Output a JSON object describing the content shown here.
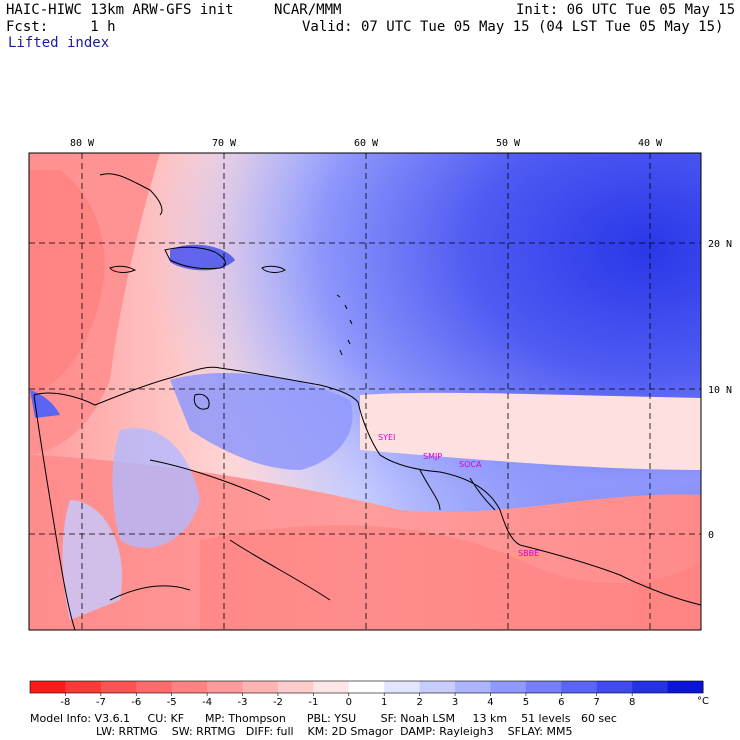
{
  "header": {
    "model": "HAIC-HIWC 13km ARW-GFS init",
    "org": "NCAR/MMM",
    "init": "Init: 06 UTC Tue 05 May 15",
    "fcst": "Fcst:     1 h",
    "valid": "Valid: 07 UTC Tue 05 May 15 (04 LST Tue 05 May 15)",
    "field": "Lifted index"
  },
  "map": {
    "lon_labels": [
      "80 W",
      "70 W",
      "60 W",
      "50 W",
      "40 W"
    ],
    "lat_labels": [
      "20 N",
      "10 N",
      "0"
    ],
    "stations": [
      "SYEI",
      "SMJP",
      "SOCA",
      "SBBE"
    ]
  },
  "colorbar": {
    "ticks": [
      "-8",
      "-7",
      "-6",
      "-5",
      "-4",
      "-3",
      "-2",
      "-1",
      "0",
      "1",
      "2",
      "3",
      "4",
      "5",
      "6",
      "7",
      "8"
    ],
    "unit": "°C",
    "colors": [
      "#ff1a1a",
      "#ff3838",
      "#ff5252",
      "#ff6a6a",
      "#ff8282",
      "#ff9a9a",
      "#ffb3b3",
      "#ffcccc",
      "#ffe6e6",
      "#ffffff",
      "#e3e6ff",
      "#c7cdff",
      "#acb4ff",
      "#9099ff",
      "#757ffa",
      "#5a65f5",
      "#3f4bf0",
      "#2431e6",
      "#0a14dc"
    ]
  },
  "footer": {
    "line1": "Model Info: V3.6.1     CU: KF      MP: Thompson      PBL: YSU       SF: Noah LSM     13 km    51 levels   60 sec",
    "line2": "LW: RRTMG    SW: RRTMG   DIFF: full    KM: 2D Smagor  DAMP: Rayleigh3    SFLAY: MM5"
  }
}
